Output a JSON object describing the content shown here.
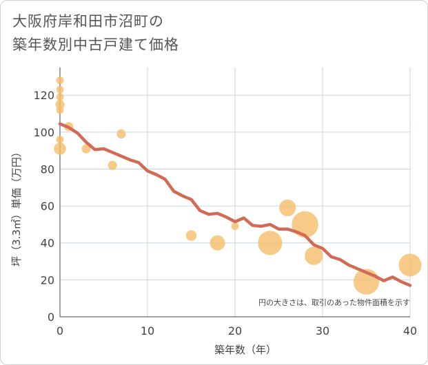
{
  "title_line1": "大阪府岸和田市沼町の",
  "title_line2": "築年数別中古戸建て価格",
  "chart_data": {
    "type": "scatter",
    "title": "大阪府岸和田市沼町の築年数別中古戸建て価格",
    "xlabel": "築年数（年）",
    "ylabel": "坪（3.3㎡）単価（万円）",
    "xlim": [
      0,
      40
    ],
    "ylim": [
      0,
      135
    ],
    "xticks": [
      0,
      10,
      20,
      30,
      40
    ],
    "yticks": [
      0,
      20,
      40,
      60,
      80,
      100,
      120
    ],
    "grid": true,
    "note": "円の大きさは、取引のあった物件面積を示す",
    "colors": {
      "bubble": "#f5bd6a",
      "trend": "#d26b55",
      "grid": "#c9d5e0"
    },
    "bubbles": [
      {
        "x": 0,
        "y": 128,
        "size": 1
      },
      {
        "x": 0,
        "y": 123,
        "size": 1
      },
      {
        "x": 0,
        "y": 119,
        "size": 1
      },
      {
        "x": 0,
        "y": 115,
        "size": 1.2
      },
      {
        "x": 0,
        "y": 112,
        "size": 1
      },
      {
        "x": 0,
        "y": 96,
        "size": 1
      },
      {
        "x": 0,
        "y": 91,
        "size": 1.6
      },
      {
        "x": 1,
        "y": 103,
        "size": 1.2
      },
      {
        "x": 3,
        "y": 91,
        "size": 1.2
      },
      {
        "x": 6,
        "y": 82,
        "size": 1.2
      },
      {
        "x": 7,
        "y": 99,
        "size": 1.2
      },
      {
        "x": 15,
        "y": 44,
        "size": 1.4
      },
      {
        "x": 18,
        "y": 40,
        "size": 2
      },
      {
        "x": 20,
        "y": 49,
        "size": 1
      },
      {
        "x": 24,
        "y": 40,
        "size": 3.2
      },
      {
        "x": 26,
        "y": 59,
        "size": 2.2
      },
      {
        "x": 28,
        "y": 50,
        "size": 3.5
      },
      {
        "x": 29,
        "y": 33,
        "size": 2.4
      },
      {
        "x": 35,
        "y": 19,
        "size": 3.4
      },
      {
        "x": 40,
        "y": 28,
        "size": 3.0
      }
    ],
    "trend": {
      "x": [
        0,
        1,
        2,
        3,
        4,
        5,
        6,
        7,
        8,
        9,
        10,
        11,
        12,
        13,
        14,
        15,
        16,
        17,
        18,
        19,
        20,
        21,
        22,
        23,
        24,
        25,
        26,
        27,
        28,
        29,
        30,
        31,
        32,
        33,
        34,
        35,
        36,
        37,
        38,
        39,
        40
      ],
      "y": [
        104.5,
        102.5,
        99.5,
        94.5,
        90.5,
        91,
        89,
        87,
        85,
        83.5,
        79,
        77,
        74.5,
        68,
        65.5,
        63.5,
        57.5,
        55.5,
        56,
        54,
        51.5,
        53.5,
        49.5,
        49,
        50,
        47.5,
        47.5,
        46,
        44,
        39,
        37,
        32.5,
        31,
        28,
        26,
        24,
        22,
        19.5,
        21.5,
        19,
        17
      ]
    }
  }
}
